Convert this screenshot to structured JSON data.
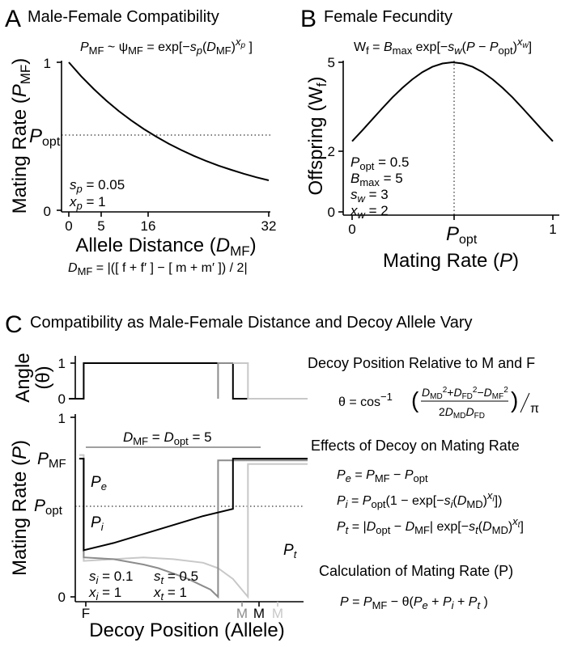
{
  "panels": {
    "a": {
      "letter": "A",
      "title": "Male-Female Compatibility",
      "top_eq": "P_MF ~ ψ_MF = exp[−s_p(D_MF)^x_p]",
      "ylabel": "Mating Rate (P_MF)",
      "xlabel": "Allele Distance (D_MF)",
      "bottom_eq": "D_MF = |([ f + f′ ] − [ m + m′ ]) / 2|",
      "params": [
        "s_p = 0.05",
        "x_p = 1"
      ],
      "popt_label": "P_opt"
    },
    "b": {
      "letter": "B",
      "title": "Female Fecundity",
      "top_eq": "W_f = B_max exp[−s_w(P − P_opt)^x_w]",
      "ylabel": "Offspring (W_f)",
      "xlabel": "Mating Rate (P)",
      "params": [
        "P_opt = 0.5",
        "B_max = 5",
        "s_w = 3",
        "x_w = 2"
      ],
      "popt_label": "P_opt"
    },
    "c": {
      "letter": "C",
      "title": "Compatibility as Male-Female Distance and Decoy Allele Vary",
      "angle_ylabel": "Angle (θ)",
      "rate_ylabel": "Mating Rate (P)",
      "xlabel": "Decoy Position (Allele)",
      "dmf_label": "D_MF = D_opt = 5",
      "curve_labels": [
        "P_e",
        "P_i",
        "P_t"
      ],
      "y_labels": [
        "P_MF",
        "P_opt"
      ],
      "params_i": [
        "s_i = 0.1",
        "x_i = 1"
      ],
      "params_t": [
        "s_t = 0.5",
        "x_t = 1"
      ],
      "x_labels": [
        "F",
        "M",
        "M",
        "M"
      ],
      "decoy_title": "Decoy Position Relative to M and F",
      "theta_eq": "θ = cos⁻¹ ((D_MD² + D_FD² − D_MF²) / (2 D_MD D_FD)) / π",
      "effects_title": "Effects of Decoy on Mating Rate",
      "effects": [
        "P_e = P_MF − P_opt",
        "P_i = P_opt(1 − exp[−s_i(D_MD)^x_i])",
        "P_t = |D_opt − D_MF| exp[−s_t(D_MD)^x_t]"
      ],
      "calc_title": "Calculation of Mating Rate (P)",
      "calc_eq": "P = P_MF − θ(P_e + P_i + P_t)"
    }
  },
  "chart_data": [
    {
      "panel": "A",
      "type": "line",
      "title": "Male-Female Compatibility",
      "xlabel": "Allele Distance (D_MF)",
      "ylabel": "Mating Rate (P_MF)",
      "xlim": [
        0,
        32
      ],
      "ylim": [
        0,
        1
      ],
      "xticks": [
        0,
        5,
        16,
        32
      ],
      "yticks": [
        0,
        1
      ],
      "series": [
        {
          "x": [
            0,
            2,
            4,
            6,
            8,
            10,
            12,
            14,
            16,
            18,
            20,
            22,
            24,
            26,
            28,
            30,
            32
          ],
          "y": [
            1.0,
            0.905,
            0.819,
            0.741,
            0.67,
            0.607,
            0.549,
            0.497,
            0.449,
            0.407,
            0.368,
            0.333,
            0.301,
            0.273,
            0.247,
            0.223,
            0.202
          ]
        }
      ],
      "hline": 0.5
    },
    {
      "panel": "B",
      "type": "line",
      "title": "Female Fecundity",
      "xlabel": "Mating Rate (P)",
      "ylabel": "Offspring (W_f)",
      "xlim": [
        0,
        1
      ],
      "ylim": [
        0,
        5
      ],
      "xticks": [
        0,
        1
      ],
      "yticks": [
        0,
        2,
        5
      ],
      "series": [
        {
          "x": [
            0,
            0.05,
            0.1,
            0.15,
            0.2,
            0.25,
            0.3,
            0.35,
            0.4,
            0.45,
            0.5,
            0.55,
            0.6,
            0.65,
            0.7,
            0.75,
            0.8,
            0.85,
            0.9,
            0.95,
            1.0
          ],
          "y": [
            2.36,
            2.72,
            3.09,
            3.46,
            3.82,
            4.14,
            4.43,
            4.67,
            4.85,
            4.96,
            5.0,
            4.96,
            4.85,
            4.67,
            4.43,
            4.14,
            3.82,
            3.46,
            3.09,
            2.72,
            2.36
          ]
        }
      ],
      "vline": 0.5
    },
    {
      "panel": "C-top",
      "type": "line",
      "ylabel": "Angle (θ)",
      "xlim": [
        -1,
        15
      ],
      "ylim": [
        0,
        1
      ],
      "yticks": [
        0,
        1
      ],
      "series": [
        {
          "color": "#000000",
          "x": [
            -1,
            0,
            0,
            10,
            10,
            15
          ],
          "y": [
            0,
            0,
            1,
            1,
            0,
            0
          ]
        },
        {
          "color": "#8c8c8c",
          "x": [
            9,
            9,
            10
          ],
          "y": [
            0,
            1,
            1
          ]
        },
        {
          "color": "#c8c8c8",
          "x": [
            10,
            11,
            11,
            15
          ],
          "y": [
            1,
            1,
            0,
            0
          ]
        }
      ]
    },
    {
      "panel": "C-bottom",
      "type": "line",
      "ylabel": "Mating Rate (P)",
      "xlabel": "Decoy Position (Allele)",
      "xlim": [
        -1,
        15
      ],
      "ylim": [
        0,
        1
      ],
      "yticks": [
        0,
        1
      ],
      "hline": 0.5,
      "series": [
        {
          "color": "#000000",
          "x": [
            -0.3,
            0,
            0,
            2,
            4,
            6,
            8,
            10,
            10,
            15
          ],
          "y": [
            0.77,
            0.77,
            0.26,
            0.3,
            0.35,
            0.4,
            0.45,
            0.49,
            0.77,
            0.77
          ]
        },
        {
          "color": "#8c8c8c",
          "x": [
            -0.3,
            0,
            0,
            2,
            4,
            5,
            6,
            7,
            8,
            8.5,
            9,
            9,
            15
          ],
          "y": [
            0.77,
            0.77,
            0.22,
            0.21,
            0.18,
            0.16,
            0.13,
            0.1,
            0.06,
            0.04,
            0.0,
            0.76,
            0.76
          ]
        },
        {
          "color": "#c8c8c8",
          "x": [
            -0.3,
            0,
            0,
            2,
            4,
            6,
            8,
            9,
            10,
            10.5,
            11,
            11,
            15
          ],
          "y": [
            0.79,
            0.79,
            0.2,
            0.21,
            0.22,
            0.21,
            0.19,
            0.16,
            0.1,
            0.05,
            0.0,
            0.74,
            0.74
          ]
        }
      ],
      "dmf_bracket": {
        "x": [
          0,
          10
        ],
        "y": 0.83
      }
    }
  ]
}
